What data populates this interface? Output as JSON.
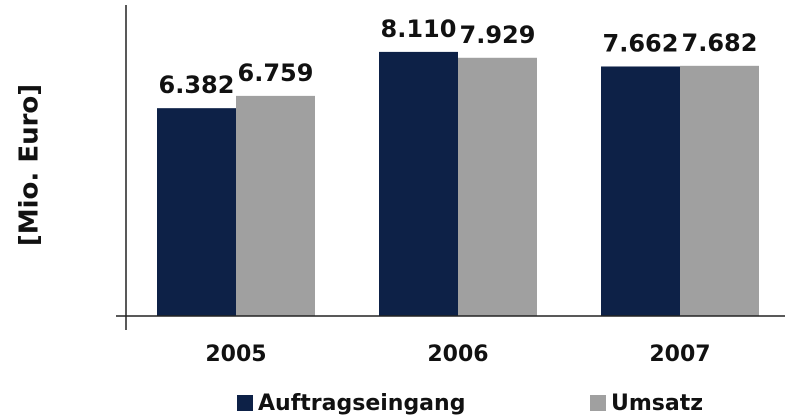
{
  "chart_data": {
    "type": "bar",
    "ylabel": "[Mio. Euro]",
    "categories": [
      "2005",
      "2006",
      "2007"
    ],
    "series": [
      {
        "name": "Auftragseingang",
        "color": "#0d2147",
        "values": [
          6382,
          8110,
          7662
        ],
        "value_labels": [
          "6.382",
          "8.110",
          "7.662"
        ]
      },
      {
        "name": "Umsatz",
        "color": "#a0a0a0",
        "values": [
          6759,
          7929,
          7682
        ],
        "value_labels": [
          "6.759",
          "7.929",
          "7.682"
        ]
      }
    ],
    "ylim": [
      0,
      9550
    ]
  }
}
